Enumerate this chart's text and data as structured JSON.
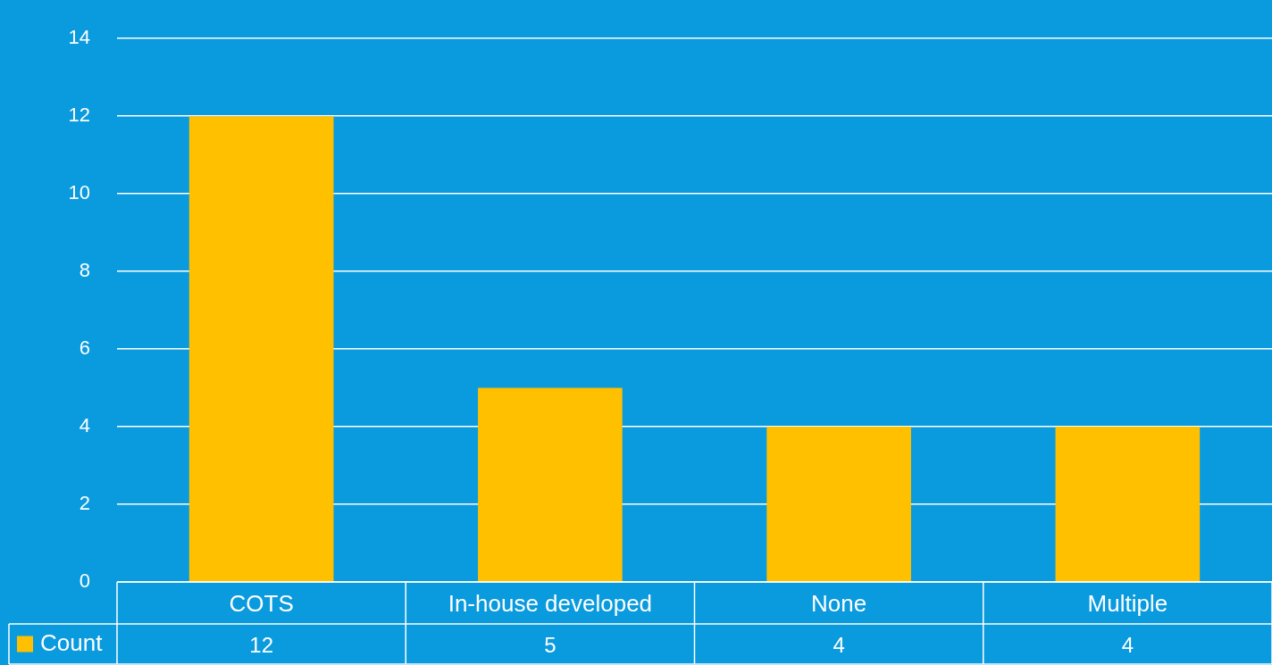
{
  "chart_data": {
    "type": "bar",
    "categories": [
      "COTS",
      "In-house developed",
      "None",
      "Multiple"
    ],
    "series": [
      {
        "name": "Count",
        "color": "#ffc000",
        "values": [
          12,
          5,
          4,
          4
        ]
      }
    ],
    "ylim": [
      0,
      14
    ],
    "yticks": [
      0,
      2,
      4,
      6,
      8,
      10,
      12,
      14
    ],
    "grid": "y",
    "legend": "bottom left",
    "data_labels": true
  }
}
